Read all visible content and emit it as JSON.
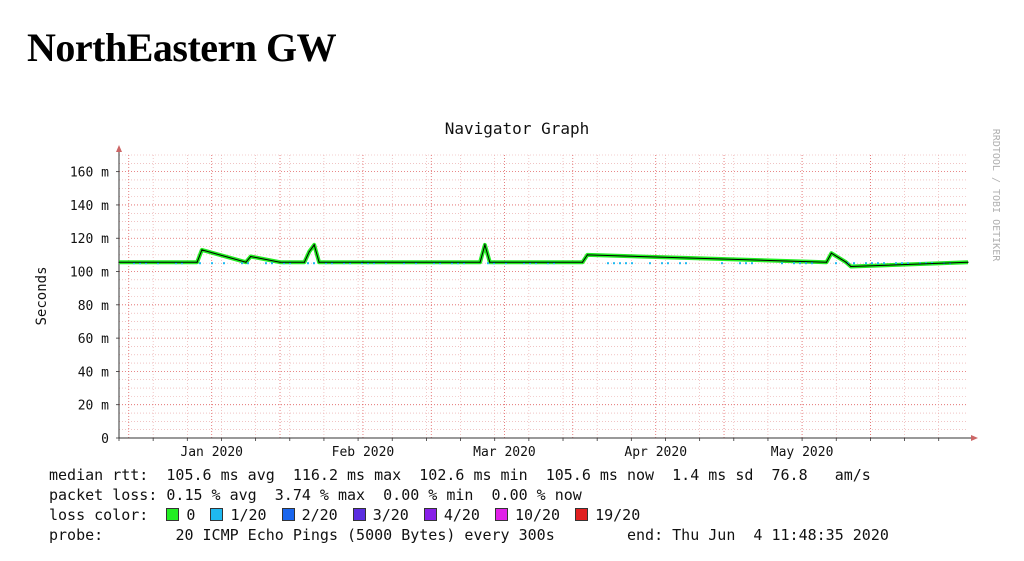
{
  "page": {
    "title": "NorthEastern GW"
  },
  "chart_data": {
    "type": "line",
    "title": "Navigator Graph",
    "ylabel": "Seconds",
    "watermark": "RRDTOOL / TOBI OETIKER",
    "ylim": [
      0,
      170
    ],
    "y_ticks": [
      {
        "value": 0,
        "label": "0"
      },
      {
        "value": 20,
        "label": "20 m"
      },
      {
        "value": 40,
        "label": "40 m"
      },
      {
        "value": 60,
        "label": "60 m"
      },
      {
        "value": 80,
        "label": "80 m"
      },
      {
        "value": 100,
        "label": "100 m"
      },
      {
        "value": 120,
        "label": "120 m"
      },
      {
        "value": 140,
        "label": "140 m"
      },
      {
        "value": 160,
        "label": "160 m"
      }
    ],
    "x_range": [
      "2019-12-13",
      "2020-06-04"
    ],
    "x_ticks": [
      {
        "date": "2020-01-01",
        "label": "Jan 2020"
      },
      {
        "date": "2020-02-01",
        "label": "Feb 2020"
      },
      {
        "date": "2020-03-01",
        "label": "Mar 2020"
      },
      {
        "date": "2020-04-01",
        "label": "Apr 2020"
      },
      {
        "date": "2020-05-01",
        "label": "May 2020"
      }
    ],
    "series": [
      {
        "unit": "ms",
        "baseline": 105.6,
        "x": [
          "2019-12-13",
          "2019-12-29",
          "2019-12-30",
          "2020-01-08",
          "2020-01-09",
          "2020-01-15",
          "2020-01-20",
          "2020-01-21",
          "2020-01-22",
          "2020-01-23",
          "2020-02-01",
          "2020-02-25",
          "2020-02-26",
          "2020-02-27",
          "2020-03-17",
          "2020-03-18",
          "2020-05-06",
          "2020-05-07",
          "2020-05-10",
          "2020-05-11",
          "2020-06-04"
        ],
        "y": [
          105.6,
          105.6,
          113,
          105.6,
          109,
          105.6,
          105.6,
          112,
          116,
          105.6,
          105.6,
          105.6,
          116,
          105.6,
          105.6,
          110,
          105.6,
          111,
          105.6,
          103,
          105.6
        ]
      }
    ],
    "colors": {
      "background": "#ffffff",
      "grid_minor": "#e8a0a0",
      "grid_major": "#e06060",
      "axis": "#cc6666",
      "line_loss_0": "#22ee22",
      "line_median": "#000000"
    }
  },
  "legend": {
    "median_rtt": {
      "label": "median rtt:",
      "avg": "105.6 ms avg",
      "max": "116.2 ms max",
      "min": "102.6 ms min",
      "now": "105.6 ms now",
      "sd": "1.4 ms sd",
      "ams_value": "76.8",
      "ams_unit": "am/s"
    },
    "packet_loss": {
      "label": "packet loss:",
      "avg": "0.15 % avg",
      "max": "3.74 % max",
      "min": "0.00 % min",
      "now": "0.00 % now"
    },
    "loss_color": {
      "label": "loss color:",
      "items": [
        {
          "label": "0",
          "color": "#22ee22"
        },
        {
          "label": "1/20",
          "color": "#1fb8f0"
        },
        {
          "label": "2/20",
          "color": "#1a66ee"
        },
        {
          "label": "3/20",
          "color": "#5b2ee0"
        },
        {
          "label": "4/20",
          "color": "#8820e8"
        },
        {
          "label": "10/20",
          "color": "#e020e8"
        },
        {
          "label": "19/20",
          "color": "#e02020"
        }
      ]
    },
    "probe": {
      "label": "probe:",
      "desc": "20 ICMP Echo Pings (5000 Bytes) every 300s",
      "end": "end: Thu Jun  4 11:48:35 2020"
    }
  }
}
